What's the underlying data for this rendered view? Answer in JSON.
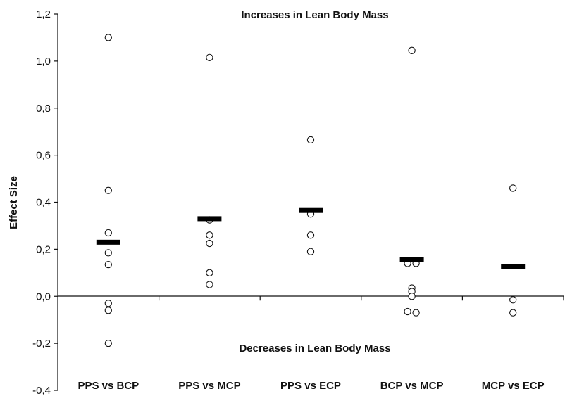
{
  "chart_data": {
    "type": "scatter",
    "title": "",
    "xlabel": "",
    "ylabel": "Effect Size",
    "ylim": [
      -0.4,
      1.2
    ],
    "yticks": [
      "-0,4",
      "-0,2",
      "0,0",
      "0,2",
      "0,4",
      "0,6",
      "0,8",
      "1,0",
      "1,2"
    ],
    "ytick_values": [
      -0.4,
      -0.2,
      0.0,
      0.2,
      0.4,
      0.6,
      0.8,
      1.0,
      1.2
    ],
    "grid": false,
    "annotations": {
      "top": "Increases in Lean Body Mass",
      "bottom": "Decreases in Lean Body Mass"
    },
    "categories": [
      "PPS vs BCP",
      "PPS vs MCP",
      "PPS vs ECP",
      "BCP vs MCP",
      "MCP vs ECP"
    ],
    "series": [
      {
        "marker": "open-circle",
        "values": [
          [
            1.1,
            0.45,
            0.27,
            0.185,
            0.135,
            -0.03,
            -0.06,
            -0.2
          ],
          [
            1.015,
            0.325,
            0.26,
            0.225,
            0.1,
            0.05
          ],
          [
            0.665,
            0.35,
            0.26,
            0.19
          ],
          [
            1.045,
            0.14,
            0.14,
            0.035,
            0.02,
            0.0,
            -0.065,
            -0.07
          ],
          [
            0.46,
            -0.015,
            -0.07
          ]
        ]
      },
      {
        "marker": "bar-mean",
        "values": [
          0.23,
          0.33,
          0.365,
          0.155,
          0.125
        ]
      }
    ]
  }
}
